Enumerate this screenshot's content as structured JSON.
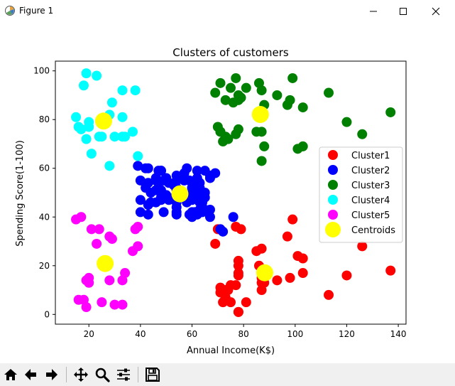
{
  "window": {
    "title": "Figure 1",
    "icons": {
      "app": "matplotlib-figure-icon",
      "minimize": "minimize-icon",
      "maximize": "maximize-icon",
      "close": "close-icon"
    }
  },
  "toolbar": {
    "buttons": [
      {
        "name": "home-button",
        "icon": "home-icon"
      },
      {
        "name": "back-button",
        "icon": "arrow-left-icon"
      },
      {
        "name": "forward-button",
        "icon": "arrow-right-icon"
      },
      {
        "name": "pan-button",
        "icon": "pan-move-icon"
      },
      {
        "name": "zoom-button",
        "icon": "zoom-magnifier-icon"
      },
      {
        "name": "subplots-button",
        "icon": "sliders-icon"
      },
      {
        "name": "save-button",
        "icon": "save-disk-icon"
      }
    ]
  },
  "chart_data": {
    "type": "scatter",
    "title": "Clusters of customers",
    "xlabel": "Annual Income(K$)",
    "ylabel": "Spending Score(1-100)",
    "xlim": [
      7,
      143
    ],
    "ylim": [
      -4,
      104
    ],
    "xticks": [
      20,
      40,
      60,
      80,
      100,
      120,
      140
    ],
    "yticks": [
      0,
      20,
      40,
      60,
      80,
      100
    ],
    "grid": false,
    "legend_position": "center-right",
    "series": [
      {
        "name": "Cluster1",
        "color": "#ff0000",
        "marker_size": "large",
        "points": [
          [
            69,
            29
          ],
          [
            70,
            35
          ],
          [
            71,
            11
          ],
          [
            71,
            9
          ],
          [
            72,
            5
          ],
          [
            73,
            7
          ],
          [
            73,
            10
          ],
          [
            74,
            10
          ],
          [
            75,
            5
          ],
          [
            75,
            12
          ],
          [
            77,
            36
          ],
          [
            77,
            12
          ],
          [
            78,
            22
          ],
          [
            78,
            17
          ],
          [
            78,
            20
          ],
          [
            78,
            16
          ],
          [
            78,
            1
          ],
          [
            78,
            1
          ],
          [
            79,
            35
          ],
          [
            81,
            5
          ],
          [
            85,
            26
          ],
          [
            86,
            20
          ],
          [
            87,
            27
          ],
          [
            87,
            10
          ],
          [
            87,
            13
          ],
          [
            87,
            15
          ],
          [
            88,
            13
          ],
          [
            88,
            15
          ],
          [
            93,
            14
          ],
          [
            97,
            32
          ],
          [
            98,
            15
          ],
          [
            99,
            39
          ],
          [
            101,
            24
          ],
          [
            103,
            17
          ],
          [
            103,
            23
          ],
          [
            113,
            8
          ],
          [
            120,
            16
          ],
          [
            126,
            28
          ],
          [
            137,
            18
          ]
        ]
      },
      {
        "name": "Cluster2",
        "color": "#0000ff",
        "marker_size": "large",
        "points": [
          [
            39,
            61
          ],
          [
            40,
            55
          ],
          [
            40,
            47
          ],
          [
            40,
            42
          ],
          [
            42,
            52
          ],
          [
            42,
            60
          ],
          [
            43,
            54
          ],
          [
            43,
            60
          ],
          [
            43,
            45
          ],
          [
            43,
            41
          ],
          [
            44,
            50
          ],
          [
            44,
            46
          ],
          [
            46,
            51
          ],
          [
            46,
            46
          ],
          [
            46,
            56
          ],
          [
            46,
            55
          ],
          [
            47,
            52
          ],
          [
            47,
            59
          ],
          [
            48,
            51
          ],
          [
            48,
            59
          ],
          [
            48,
            50
          ],
          [
            48,
            48
          ],
          [
            48,
            59
          ],
          [
            48,
            47
          ],
          [
            49,
            55
          ],
          [
            49,
            42
          ],
          [
            50,
            49
          ],
          [
            50,
            56
          ],
          [
            51,
            47
          ],
          [
            51,
            54
          ],
          [
            53,
            53
          ],
          [
            53,
            48
          ],
          [
            54,
            52
          ],
          [
            54,
            42
          ],
          [
            54,
            51
          ],
          [
            54,
            55
          ],
          [
            54,
            41
          ],
          [
            54,
            44
          ],
          [
            54,
            57
          ],
          [
            54,
            46
          ],
          [
            57,
            58
          ],
          [
            57,
            55
          ],
          [
            58,
            60
          ],
          [
            58,
            46
          ],
          [
            59,
            55
          ],
          [
            59,
            41
          ],
          [
            60,
            49
          ],
          [
            60,
            40
          ],
          [
            60,
            42
          ],
          [
            60,
            52
          ],
          [
            60,
            47
          ],
          [
            60,
            50
          ],
          [
            61,
            42
          ],
          [
            61,
            49
          ],
          [
            62,
            41
          ],
          [
            62,
            48
          ],
          [
            62,
            59
          ],
          [
            62,
            55
          ],
          [
            62,
            56
          ],
          [
            62,
            42
          ],
          [
            63,
            50
          ],
          [
            63,
            46
          ],
          [
            63,
            43
          ],
          [
            63,
            48
          ],
          [
            63,
            52
          ],
          [
            63,
            54
          ],
          [
            64,
            42
          ],
          [
            64,
            46
          ],
          [
            65,
            48
          ],
          [
            65,
            50
          ],
          [
            65,
            43
          ],
          [
            65,
            59
          ],
          [
            67,
            43
          ],
          [
            67,
            57
          ],
          [
            67,
            56
          ],
          [
            67,
            40
          ],
          [
            69,
            58
          ],
          [
            71,
            35
          ],
          [
            72,
            34
          ],
          [
            76,
            40
          ]
        ]
      },
      {
        "name": "Cluster3",
        "color": "#008000",
        "marker_size": "large",
        "points": [
          [
            69,
            91
          ],
          [
            70,
            77
          ],
          [
            71,
            95
          ],
          [
            71,
            75
          ],
          [
            71,
            75
          ],
          [
            72,
            71
          ],
          [
            73,
            88
          ],
          [
            73,
            73
          ],
          [
            74,
            72
          ],
          [
            75,
            93
          ],
          [
            76,
            87
          ],
          [
            77,
            97
          ],
          [
            77,
            74
          ],
          [
            78,
            90
          ],
          [
            78,
            88
          ],
          [
            78,
            76
          ],
          [
            79,
            89
          ],
          [
            81,
            93
          ],
          [
            85,
            75
          ],
          [
            86,
            95
          ],
          [
            87,
            63
          ],
          [
            87,
            75
          ],
          [
            87,
            92
          ],
          [
            88,
            86
          ],
          [
            88,
            69
          ],
          [
            93,
            90
          ],
          [
            97,
            86
          ],
          [
            98,
            88
          ],
          [
            99,
            97
          ],
          [
            101,
            68
          ],
          [
            103,
            85
          ],
          [
            103,
            69
          ],
          [
            113,
            91
          ],
          [
            120,
            79
          ],
          [
            126,
            74
          ],
          [
            137,
            83
          ]
        ]
      },
      {
        "name": "Cluster4",
        "color": "#00ffff",
        "marker_size": "large",
        "points": [
          [
            15,
            81
          ],
          [
            16,
            77
          ],
          [
            17,
            76
          ],
          [
            18,
            94
          ],
          [
            19,
            72
          ],
          [
            19,
            99
          ],
          [
            20,
            77
          ],
          [
            20,
            79
          ],
          [
            21,
            66
          ],
          [
            23,
            98
          ],
          [
            24,
            73
          ],
          [
            25,
            73
          ],
          [
            28,
            82
          ],
          [
            28,
            61
          ],
          [
            29,
            87
          ],
          [
            30,
            73
          ],
          [
            33,
            73
          ],
          [
            33,
            81
          ],
          [
            33,
            92
          ],
          [
            34,
            73
          ],
          [
            37,
            75
          ],
          [
            38,
            92
          ],
          [
            39,
            65
          ]
        ]
      },
      {
        "name": "Cluster5",
        "color": "#ff00ff",
        "marker_size": "large",
        "points": [
          [
            15,
            39
          ],
          [
            16,
            6
          ],
          [
            17,
            40
          ],
          [
            18,
            6
          ],
          [
            19,
            3
          ],
          [
            19,
            14
          ],
          [
            20,
            15
          ],
          [
            20,
            13
          ],
          [
            21,
            35
          ],
          [
            23,
            29
          ],
          [
            24,
            35
          ],
          [
            25,
            5
          ],
          [
            28,
            14
          ],
          [
            28,
            32
          ],
          [
            29,
            31
          ],
          [
            30,
            4
          ],
          [
            33,
            4
          ],
          [
            33,
            14
          ],
          [
            34,
            17
          ],
          [
            37,
            26
          ],
          [
            38,
            35
          ],
          [
            39,
            36
          ],
          [
            39,
            28
          ]
        ]
      },
      {
        "name": "Centroids",
        "color": "#ffff00",
        "marker_size": "extra-large",
        "points": [
          [
            25.7,
            79.4
          ],
          [
            55.3,
            49.5
          ],
          [
            86.5,
            82.1
          ],
          [
            88.2,
            17.1
          ],
          [
            26.3,
            20.9
          ]
        ]
      }
    ]
  }
}
